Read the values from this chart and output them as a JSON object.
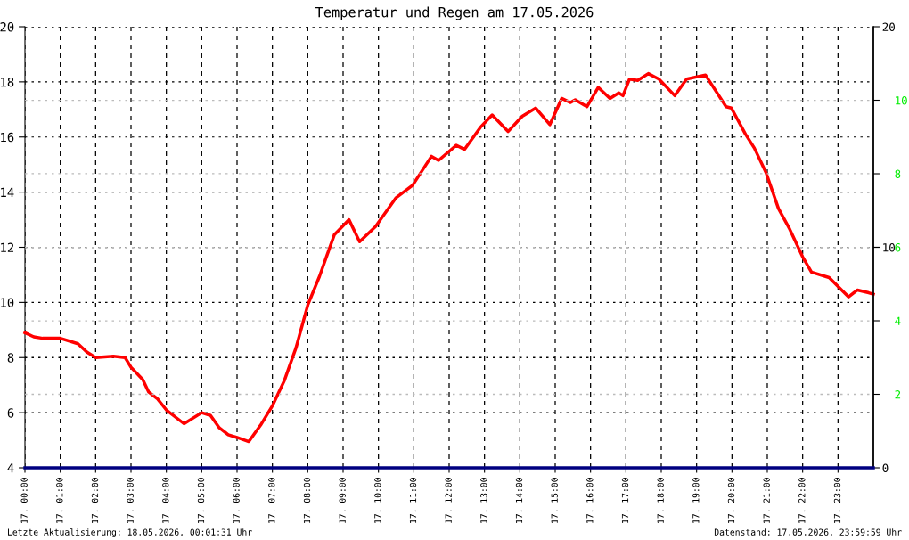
{
  "chart_data": {
    "type": "line",
    "title": "Temperatur und Regen am 17.05.2026",
    "xlim": [
      "2026-05-17T00:00",
      "2026-05-18T00:00"
    ],
    "xticks": [
      {
        "value": "2026-05-17T00:00",
        "label": "17. 00:00"
      },
      {
        "value": "2026-05-17T01:00",
        "label": "17. 01:00"
      },
      {
        "value": "2026-05-17T02:00",
        "label": "17. 02:00"
      },
      {
        "value": "2026-05-17T03:00",
        "label": "17. 03:00"
      },
      {
        "value": "2026-05-17T04:00",
        "label": "17. 04:00"
      },
      {
        "value": "2026-05-17T05:00",
        "label": "17. 05:00"
      },
      {
        "value": "2026-05-17T06:00",
        "label": "17. 06:00"
      },
      {
        "value": "2026-05-17T07:00",
        "label": "17. 07:00"
      },
      {
        "value": "2026-05-17T08:00",
        "label": "17. 08:00"
      },
      {
        "value": "2026-05-17T09:00",
        "label": "17. 09:00"
      },
      {
        "value": "2026-05-17T10:00",
        "label": "17. 10:00"
      },
      {
        "value": "2026-05-17T11:00",
        "label": "17. 11:00"
      },
      {
        "value": "2026-05-17T12:00",
        "label": "17. 12:00"
      },
      {
        "value": "2026-05-17T13:00",
        "label": "17. 13:00"
      },
      {
        "value": "2026-05-17T14:00",
        "label": "17. 14:00"
      },
      {
        "value": "2026-05-17T15:00",
        "label": "17. 15:00"
      },
      {
        "value": "2026-05-17T16:00",
        "label": "17. 16:00"
      },
      {
        "value": "2026-05-17T17:00",
        "label": "17. 17:00"
      },
      {
        "value": "2026-05-17T18:00",
        "label": "17. 18:00"
      },
      {
        "value": "2026-05-17T19:00",
        "label": "17. 19:00"
      },
      {
        "value": "2026-05-17T20:00",
        "label": "17. 20:00"
      },
      {
        "value": "2026-05-17T21:00",
        "label": "17. 21:00"
      },
      {
        "value": "2026-05-17T22:00",
        "label": "17. 22:00"
      },
      {
        "value": "2026-05-17T23:00",
        "label": "17. 23:00"
      }
    ],
    "ylim": [
      4,
      20
    ],
    "yticks": [
      4,
      6,
      8,
      10,
      12,
      14,
      16,
      18,
      20
    ],
    "y2lim": [
      0,
      12
    ],
    "y2ticks": [
      2,
      4,
      6,
      8,
      10
    ],
    "y3lim": [
      0,
      20
    ],
    "y3ticks": [
      0,
      10,
      20
    ],
    "grid": true,
    "series": [
      {
        "color": "#ff0000",
        "x": [
          "2026-05-17T00:00",
          "2026-05-17T00:15",
          "2026-05-17T00:30",
          "2026-05-17T01:00",
          "2026-05-17T01:30",
          "2026-05-17T01:45",
          "2026-05-17T02:00",
          "2026-05-17T02:30",
          "2026-05-17T02:50",
          "2026-05-17T03:00",
          "2026-05-17T03:20",
          "2026-05-17T03:30",
          "2026-05-17T03:45",
          "2026-05-17T04:00",
          "2026-05-17T04:30",
          "2026-05-17T05:00",
          "2026-05-17T05:15",
          "2026-05-17T05:30",
          "2026-05-17T05:45",
          "2026-05-17T06:00",
          "2026-05-17T06:20",
          "2026-05-17T06:40",
          "2026-05-17T07:00",
          "2026-05-17T07:20",
          "2026-05-17T07:40",
          "2026-05-17T08:00",
          "2026-05-17T08:20",
          "2026-05-17T08:30",
          "2026-05-17T08:45",
          "2026-05-17T09:10",
          "2026-05-17T09:28",
          "2026-05-17T09:55",
          "2026-05-17T10:30",
          "2026-05-17T10:58",
          "2026-05-17T11:30",
          "2026-05-17T11:42",
          "2026-05-17T12:12",
          "2026-05-17T12:26",
          "2026-05-17T12:53",
          "2026-05-17T13:13",
          "2026-05-17T13:40",
          "2026-05-17T14:04",
          "2026-05-17T14:27",
          "2026-05-17T14:51",
          "2026-05-17T15:11",
          "2026-05-17T15:26",
          "2026-05-17T15:34",
          "2026-05-17T15:54",
          "2026-05-17T16:13",
          "2026-05-17T16:33",
          "2026-05-17T16:48",
          "2026-05-17T16:55",
          "2026-05-17T17:06",
          "2026-05-17T17:20",
          "2026-05-17T17:38",
          "2026-05-17T17:56",
          "2026-05-17T18:23",
          "2026-05-17T18:43",
          "2026-05-17T19:15",
          "2026-05-17T19:50",
          "2026-05-17T19:59",
          "2026-05-17T20:23",
          "2026-05-17T20:38",
          "2026-05-17T20:58",
          "2026-05-17T21:19",
          "2026-05-17T21:37",
          "2026-05-17T22:00",
          "2026-05-17T22:15",
          "2026-05-17T22:45",
          "2026-05-17T23:18",
          "2026-05-17T23:33",
          "2026-05-17T23:52",
          "2026-05-18T00:00"
        ],
        "values": [
          8.9,
          8.75,
          8.7,
          8.7,
          8.5,
          8.2,
          8.0,
          8.05,
          8.0,
          7.65,
          7.2,
          6.75,
          6.5,
          6.1,
          5.6,
          6.0,
          5.9,
          5.45,
          5.2,
          5.1,
          4.95,
          5.55,
          6.25,
          7.15,
          8.35,
          9.9,
          10.95,
          11.55,
          12.45,
          13.0,
          12.2,
          12.75,
          13.8,
          14.25,
          15.3,
          15.15,
          15.7,
          15.55,
          16.35,
          16.8,
          16.2,
          16.75,
          17.05,
          16.45,
          17.4,
          17.25,
          17.35,
          17.1,
          17.8,
          17.4,
          17.6,
          17.5,
          18.1,
          18.05,
          18.3,
          18.1,
          17.5,
          18.1,
          18.25,
          17.1,
          17.05,
          16.1,
          15.6,
          14.7,
          13.4,
          12.7,
          11.65,
          11.1,
          10.9,
          10.2,
          10.45,
          10.35,
          10.3
        ]
      },
      {
        "color": "#000080",
        "axis": "y3",
        "x": [
          "2026-05-17T00:00",
          "2026-05-18T00:00"
        ],
        "values": [
          0,
          0
        ]
      }
    ],
    "annotations": [
      "Letzte Aktualisierung: 18.05.2026, 00:01:31 Uhr",
      "Datenstand: 17.05.2026, 23:59:59 Uhr"
    ]
  }
}
